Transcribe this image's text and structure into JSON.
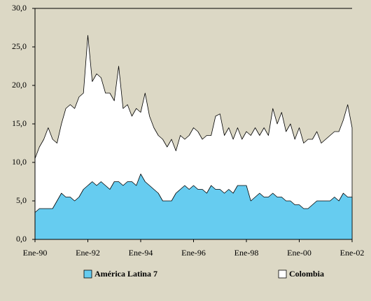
{
  "chart_data": {
    "type": "area",
    "categories": [
      "Ene-90",
      null,
      null,
      null,
      null,
      null,
      null,
      null,
      null,
      null,
      null,
      null,
      "Ene-92",
      null,
      null,
      null,
      null,
      null,
      null,
      null,
      null,
      null,
      null,
      null,
      "Ene-94",
      null,
      null,
      null,
      null,
      null,
      null,
      null,
      null,
      null,
      null,
      null,
      "Ene-96",
      null,
      null,
      null,
      null,
      null,
      null,
      null,
      null,
      null,
      null,
      null,
      "Ene-98",
      null,
      null,
      null,
      null,
      null,
      null,
      null,
      null,
      null,
      null,
      null,
      "Ene-00",
      null,
      null,
      null,
      null,
      null,
      null,
      null,
      null,
      null,
      null,
      null,
      "Ene-02"
    ],
    "series": [
      {
        "name": "América Latina 7",
        "color": "#66ccf0",
        "values": [
          3.5,
          4,
          4,
          4,
          4,
          5,
          6,
          5.5,
          5.5,
          5,
          5.5,
          6.5,
          7,
          7.5,
          7,
          7.5,
          7,
          6.5,
          7.5,
          7.5,
          7,
          7.5,
          7.5,
          7,
          8.5,
          7.5,
          7,
          6.5,
          6,
          5,
          5,
          5,
          6,
          6.5,
          7,
          6.5,
          7,
          6.5,
          6.5,
          6,
          7,
          6.5,
          6.5,
          6,
          6.5,
          6,
          7,
          7,
          7,
          5,
          5.5,
          6,
          5.5,
          5.5,
          6,
          5.5,
          5.5,
          5,
          5,
          4.5,
          4.5,
          4,
          4,
          4.5,
          5,
          5,
          5,
          5,
          5.5,
          5,
          6,
          5.5,
          5.5
        ]
      },
      {
        "name": "Colombia",
        "color": "#ffffff",
        "values": [
          10.5,
          12,
          13,
          14.5,
          13,
          12.5,
          15,
          17,
          17.5,
          17,
          18.5,
          19,
          26.5,
          20.5,
          21.5,
          21,
          19,
          19,
          18,
          22.5,
          17,
          17.5,
          16,
          17,
          16.5,
          19,
          16,
          14.5,
          13.5,
          13,
          12,
          13,
          11.5,
          13.5,
          13,
          13.5,
          14.5,
          14,
          13,
          13.5,
          13.5,
          16,
          16.3,
          13.5,
          14.5,
          13,
          14.5,
          13,
          14,
          13.5,
          14.5,
          13.5,
          14.5,
          13.5,
          17,
          15,
          16.5,
          14,
          15,
          13,
          14.5,
          12.5,
          13,
          13,
          14,
          12.5,
          13,
          13.5,
          14,
          14,
          15.5,
          17.5,
          14.5
        ]
      }
    ],
    "ylim": [
      0,
      30
    ],
    "yticks": [
      {
        "value": 0,
        "label": "0,0"
      },
      {
        "value": 5,
        "label": "5,0"
      },
      {
        "value": 10,
        "label": "10,0"
      },
      {
        "value": 15,
        "label": "15,0"
      },
      {
        "value": 20,
        "label": "20,0"
      },
      {
        "value": 25,
        "label": "25,0"
      },
      {
        "value": 30,
        "label": "30,0"
      }
    ],
    "legend": "bottom"
  }
}
